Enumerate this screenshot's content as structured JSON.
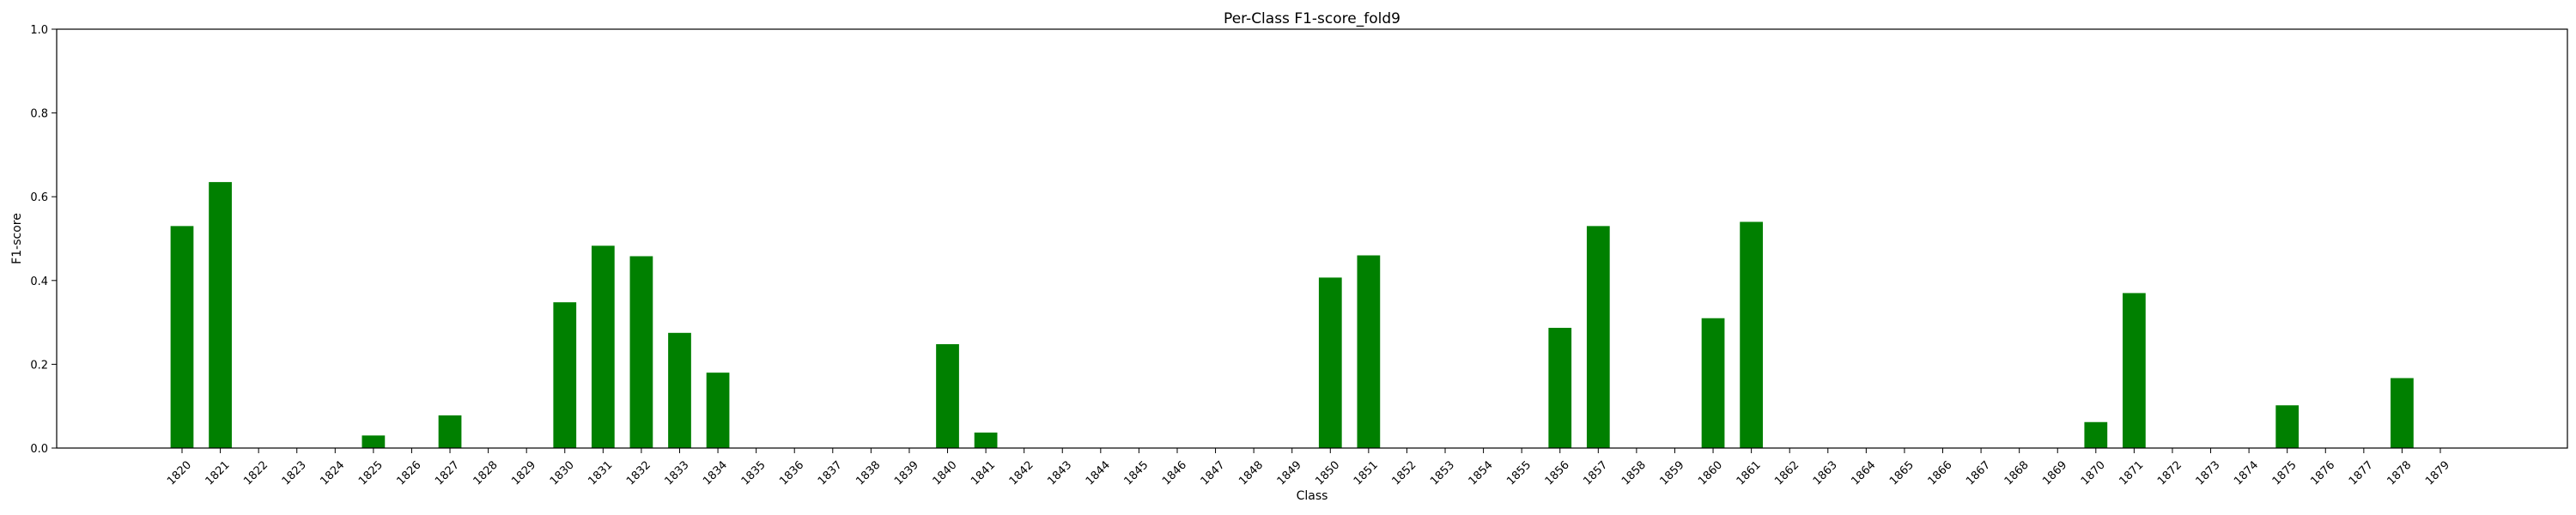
{
  "chart_data": {
    "type": "bar",
    "title": "Per-Class F1-score_fold9",
    "xlabel": "Class",
    "ylabel": "F1-score",
    "ylim": [
      0,
      1.0
    ],
    "yticks": [
      "0.0",
      "0.2",
      "0.4",
      "0.6",
      "0.8",
      "1.0"
    ],
    "grid": false,
    "bar_color": "#008000",
    "categories": [
      "1820",
      "1821",
      "1822",
      "1823",
      "1824",
      "1825",
      "1826",
      "1827",
      "1828",
      "1829",
      "1830",
      "1831",
      "1832",
      "1833",
      "1834",
      "1835",
      "1836",
      "1837",
      "1838",
      "1839",
      "1840",
      "1841",
      "1842",
      "1843",
      "1844",
      "1845",
      "1846",
      "1847",
      "1848",
      "1849",
      "1850",
      "1851",
      "1852",
      "1853",
      "1854",
      "1855",
      "1856",
      "1857",
      "1858",
      "1859",
      "1860",
      "1861",
      "1862",
      "1863",
      "1864",
      "1865",
      "1866",
      "1867",
      "1868",
      "1869",
      "1870",
      "1871",
      "1872",
      "1873",
      "1874",
      "1875",
      "1876",
      "1877",
      "1878",
      "1879"
    ],
    "values": [
      0.53,
      0.635,
      0,
      0,
      0,
      0.03,
      0,
      0.078,
      0,
      0,
      0.348,
      0.483,
      0.458,
      0.275,
      0.18,
      0,
      0,
      0,
      0,
      0,
      0.248,
      0.037,
      0,
      0,
      0,
      0,
      0,
      0,
      0,
      0,
      0.407,
      0.46,
      0,
      0,
      0,
      0,
      0.287,
      0.53,
      0,
      0,
      0.31,
      0.54,
      0,
      0,
      0,
      0,
      0,
      0,
      0,
      0,
      0.062,
      0.37,
      0,
      0,
      0,
      0.102,
      0,
      0,
      0.167,
      0
    ]
  }
}
